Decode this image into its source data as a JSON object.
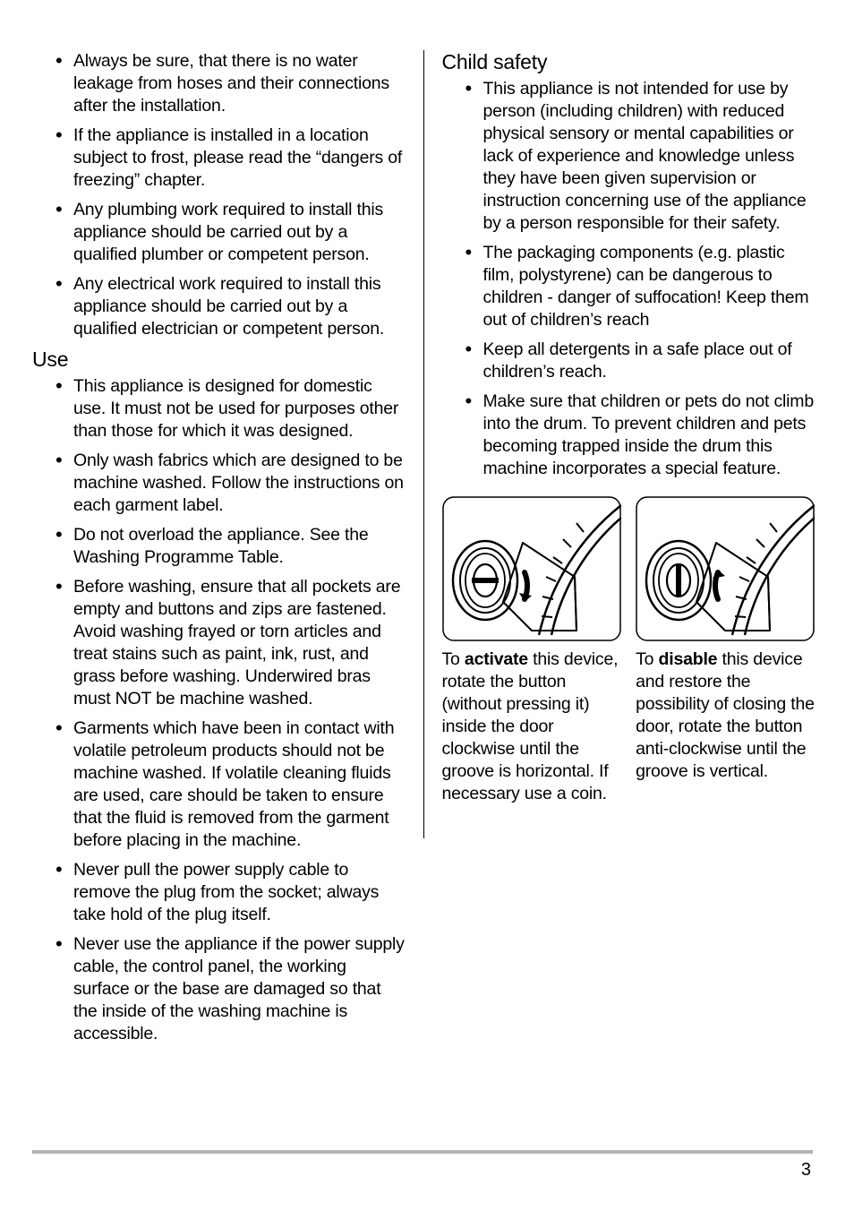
{
  "left": {
    "top_list": [
      "Always be sure, that there is no water leakage from hoses and their connections after the installation.",
      "If the appliance is installed in a location subject to frost, please read the “dangers of freezing” chapter.",
      "Any plumbing work required to install this appliance should be carried out by a qualified plumber or competent person.",
      "Any electrical work required to install this appliance should be carried out by a qualified electrician or competent person."
    ],
    "use_heading": "Use",
    "use_list": [
      "This appliance is designed for domestic use. It must not be used for purposes other than those for which it was designed.",
      "Only wash fabrics which are designed to be machine washed. Follow the instructions on each garment label.",
      "Do not overload the appliance. See the Washing Programme Table.",
      "Before washing, ensure that all pockets are empty and buttons and zips are fastened. Avoid washing frayed or torn articles and treat stains such as paint, ink, rust, and grass before washing. Underwired bras must NOT be machine washed.",
      "Garments which have been in contact with volatile petroleum products should not be machine washed. If volatile cleaning fluids are used, care should be taken to ensure that the fluid is removed from the garment before placing in the machine.",
      "Never pull the power supply cable to remove the plug from the socket; always take hold of the plug itself.",
      "Never use the appliance if the power supply cable, the control panel, the working surface or the base are damaged so that the inside of the washing machine is accessible."
    ]
  },
  "right": {
    "child_heading": "Child safety",
    "child_list": [
      "This appliance is not intended for use by person (including children) with reduced physical sensory or mental capabilities or lack of experience and knowledge unless they have been given supervision or instruction concerning use of the appliance by a person responsible for their safety.",
      "The packaging components (e.g. plastic film, polystyrene) can be dangerous to children - danger of suffocation! Keep them out of children’s reach",
      "Keep all detergents in a safe place out of children’s reach.",
      "Make sure that children or pets do not climb into the drum. To prevent children and pets becoming trapped inside the drum this machine incorporates a special feature."
    ],
    "fig_activate_pre": "To ",
    "fig_activate_bold": "activate",
    "fig_activate_post": " this device, rotate the button (without pressing it) inside the door clockwise until the groove is horizontal. If necessary use a coin.",
    "fig_disable_pre": "To ",
    "fig_disable_bold": "disable",
    "fig_disable_post": " this device and restore the possibility of closing the door, rotate the button anti-clockwise until the groove is vertical."
  },
  "page_number": "3"
}
